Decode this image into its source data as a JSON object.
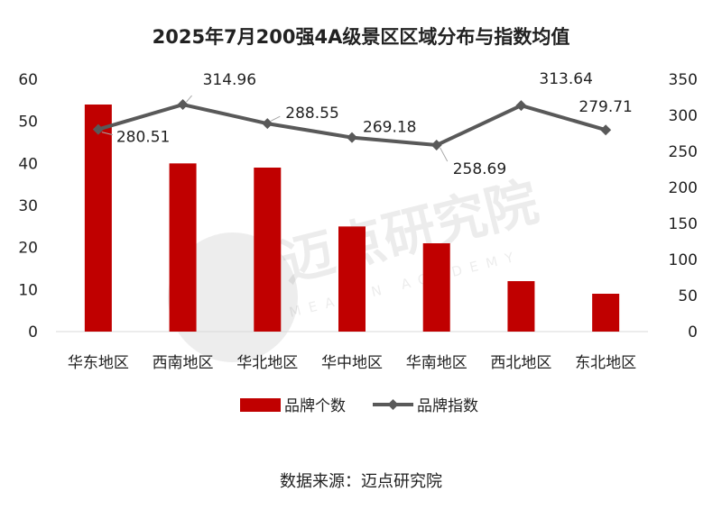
{
  "chart_data": {
    "type": "bar",
    "title": "2025年7月200强4A级景区区域分布与指数均值",
    "categories": [
      "华东地区",
      "西南地区",
      "华北地区",
      "华中地区",
      "华南地区",
      "西北地区",
      "东北地区"
    ],
    "series": [
      {
        "name": "品牌个数",
        "type": "bar",
        "axis": "left",
        "color": "#C00000",
        "values": [
          54,
          40,
          39,
          25,
          21,
          12,
          9
        ]
      },
      {
        "name": "品牌指数",
        "type": "line",
        "axis": "right",
        "color": "#595959",
        "values": [
          280.51,
          314.96,
          288.55,
          269.18,
          258.69,
          313.64,
          279.71
        ],
        "labels": [
          "280.51",
          "314.96",
          "288.55",
          "269.18",
          "258.69",
          "313.64",
          "279.71"
        ]
      }
    ],
    "y_left": {
      "ylim": [
        0,
        60
      ],
      "ticks": [
        0,
        10,
        20,
        30,
        40,
        50,
        60
      ]
    },
    "y_right": {
      "ylim": [
        0,
        350
      ],
      "ticks": [
        0,
        50,
        100,
        150,
        200,
        250,
        300,
        350
      ]
    },
    "grid": false,
    "legend": {
      "position": "bottom"
    }
  },
  "source": "数据来源：迈点研究院",
  "watermark": {
    "text": "迈点研究院",
    "subtext": "MEADIN ACADEMY"
  }
}
